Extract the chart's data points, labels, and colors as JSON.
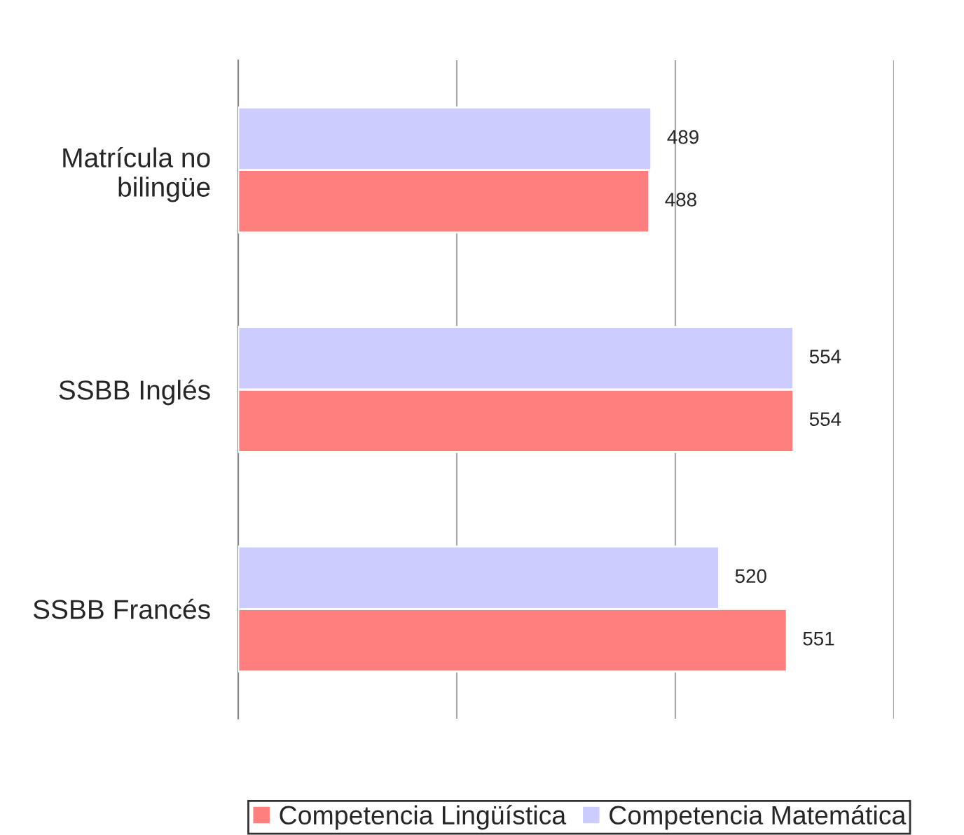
{
  "chart_data": {
    "type": "bar",
    "orientation": "horizontal",
    "categories": [
      "Matrícula no\nbilingüe",
      "SSBB Inglés",
      "SSBB Francés"
    ],
    "series": [
      {
        "name": "Competencia Lingüística",
        "color": "#ff7f7f",
        "values": [
          488,
          554,
          551
        ]
      },
      {
        "name": "Competencia Matemática",
        "color": "#ccccff",
        "values": [
          489,
          554,
          520
        ]
      }
    ],
    "xlim": [
      300,
      600
    ],
    "xticks": [
      {
        "value": 300,
        "label": null
      },
      {
        "value": 400,
        "label": null
      },
      {
        "value": 500,
        "label": null
      },
      {
        "value": 600,
        "label": null
      }
    ],
    "tick_labels": "y",
    "grid": "x",
    "data_labels": true,
    "legend": "bottom"
  }
}
